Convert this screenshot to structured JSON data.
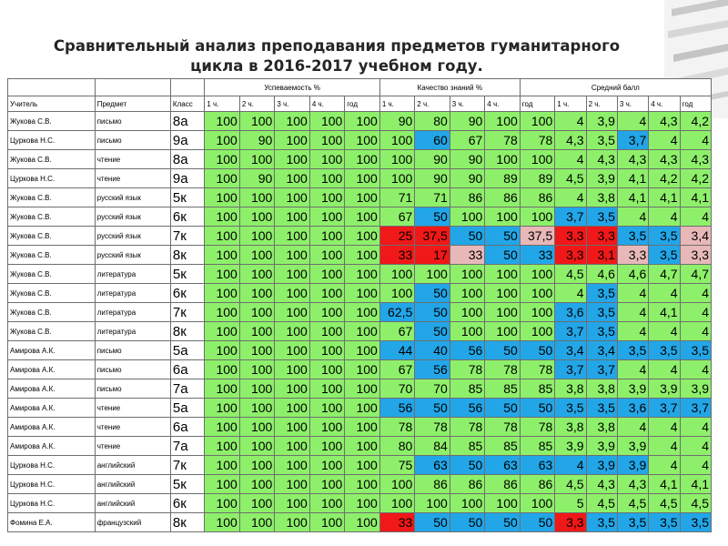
{
  "title_line1": "Сравнительный анализ преподавания предметов гуманитарного",
  "title_line2": "цикла в 2016-2017 учебном году.",
  "headers": {
    "uspevaemost": "Успеваемость %",
    "kachestvo": "Качество знаний %",
    "sredniy": "Средний балл",
    "teacher": "Учитель",
    "subject": "Предмет",
    "class": "Класс",
    "sub_us": [
      "1 ч.",
      "2 ч.",
      "3 ч.",
      "4 ч.",
      "год"
    ],
    "sub_k": [
      "1 ч.",
      "2 ч.",
      "3 ч.",
      "4 ч."
    ],
    "sub_s": [
      "год",
      "1 ч.",
      "2 ч.",
      "3 ч.",
      "4 ч.",
      "год"
    ]
  },
  "colors": {
    "green": "#8ef06a",
    "blue": "#22a6e8",
    "red": "#f01818",
    "pink": "#e8b8b8"
  },
  "rows": [
    {
      "t": "Жукова С.В.",
      "s": "письмо",
      "c": "8а",
      "v": [
        "100",
        "100",
        "100",
        "100",
        "100",
        "90",
        "80",
        "90",
        "100",
        "100",
        "4",
        "3,9",
        "4",
        "4,3",
        "4,2"
      ],
      "m": "ggggggggggggggg"
    },
    {
      "t": "Цуркова Н.С.",
      "s": "письмо",
      "c": "9а",
      "v": [
        "100",
        "90",
        "100",
        "100",
        "100",
        "100",
        "60",
        "67",
        "78",
        "78",
        "4,3",
        "3,5",
        "3,7",
        "4",
        "4"
      ],
      "m": "ggggggbgggggbgg"
    },
    {
      "t": "Жукова С.В.",
      "s": "чтение",
      "c": "8а",
      "v": [
        "100",
        "100",
        "100",
        "100",
        "100",
        "100",
        "90",
        "90",
        "100",
        "100",
        "4",
        "4,3",
        "4,3",
        "4,3",
        "4,3"
      ],
      "m": "ggggggggggggggg"
    },
    {
      "t": "Цуркова Н.С.",
      "s": "чтение",
      "c": "9а",
      "v": [
        "100",
        "90",
        "100",
        "100",
        "100",
        "100",
        "90",
        "90",
        "89",
        "89",
        "4,5",
        "3,9",
        "4,1",
        "4,2",
        "4,2"
      ],
      "m": "ggggggggggggggg"
    },
    {
      "t": "Жукова С.В.",
      "s": "русский язык",
      "c": "5к",
      "v": [
        "100",
        "100",
        "100",
        "100",
        "100",
        "71",
        "71",
        "86",
        "86",
        "86",
        "4",
        "3,8",
        "4,1",
        "4,1",
        "4,1"
      ],
      "m": "ggggggggggggggg"
    },
    {
      "t": "Жукова С.В.",
      "s": "русский язык",
      "c": "6к",
      "v": [
        "100",
        "100",
        "100",
        "100",
        "100",
        "67",
        "50",
        "100",
        "100",
        "100",
        "3,7",
        "3,5",
        "4",
        "4",
        "4"
      ],
      "m": "ggggggbgggbbggg"
    },
    {
      "t": "Жукова С.В.",
      "s": "русский язык",
      "c": "7к",
      "v": [
        "100",
        "100",
        "100",
        "100",
        "100",
        "25",
        "37,5",
        "50",
        "50",
        "37,5",
        "3,3",
        "3,3",
        "3,5",
        "3,5",
        "3,4"
      ],
      "m": "gggggrrbbprrbbp"
    },
    {
      "t": "Жукова С.В.",
      "s": "русский язык",
      "c": "8к",
      "v": [
        "100",
        "100",
        "100",
        "100",
        "100",
        "33",
        "17",
        "33",
        "50",
        "33",
        "3,3",
        "3,1",
        "3,3",
        "3,5",
        "3,3"
      ],
      "m": "gggggrrpbbrrpbp"
    },
    {
      "t": "Жукова С.В.",
      "s": "литература",
      "c": "5к",
      "v": [
        "100",
        "100",
        "100",
        "100",
        "100",
        "100",
        "100",
        "100",
        "100",
        "100",
        "4,5",
        "4,6",
        "4,6",
        "4,7",
        "4,7"
      ],
      "m": "ggggggggggggggg"
    },
    {
      "t": "Жукова С.В.",
      "s": "литература",
      "c": "6к",
      "v": [
        "100",
        "100",
        "100",
        "100",
        "100",
        "100",
        "50",
        "100",
        "100",
        "100",
        "4",
        "3,5",
        "4",
        "4",
        "4"
      ],
      "m": "ggggggbggggbggg"
    },
    {
      "t": "Жукова С.В.",
      "s": "литература",
      "c": "7к",
      "v": [
        "100",
        "100",
        "100",
        "100",
        "100",
        "62,5",
        "50",
        "100",
        "100",
        "100",
        "3,6",
        "3,5",
        "4",
        "4,1",
        "4"
      ],
      "m": "gggggbbgggbbggg"
    },
    {
      "t": "Жукова С.В.",
      "s": "литература",
      "c": "8к",
      "v": [
        "100",
        "100",
        "100",
        "100",
        "100",
        "67",
        "50",
        "100",
        "100",
        "100",
        "3,7",
        "3,5",
        "4",
        "4",
        "4"
      ],
      "m": "ggggggbgggbbggg"
    },
    {
      "t": "Амирова А.К.",
      "s": "письмо",
      "c": "5а",
      "v": [
        "100",
        "100",
        "100",
        "100",
        "100",
        "44",
        "40",
        "56",
        "50",
        "50",
        "3,4",
        "3,4",
        "3,5",
        "3,5",
        "3,5"
      ],
      "m": "gggggbbbbbbbbbb"
    },
    {
      "t": "Амирова А.К.",
      "s": "письмо",
      "c": "6а",
      "v": [
        "100",
        "100",
        "100",
        "100",
        "100",
        "67",
        "56",
        "78",
        "78",
        "78",
        "3,7",
        "3,7",
        "4",
        "4",
        "4"
      ],
      "m": "ggggggbgggbbggg"
    },
    {
      "t": "Амирова А.К.",
      "s": "письмо",
      "c": "7а",
      "v": [
        "100",
        "100",
        "100",
        "100",
        "100",
        "70",
        "70",
        "85",
        "85",
        "85",
        "3,8",
        "3,8",
        "3,9",
        "3,9",
        "3,9"
      ],
      "m": "ggggggggggggggg"
    },
    {
      "t": "Амирова А.К.",
      "s": "чтение",
      "c": "5а",
      "v": [
        "100",
        "100",
        "100",
        "100",
        "100",
        "56",
        "50",
        "56",
        "50",
        "50",
        "3,5",
        "3,5",
        "3,6",
        "3,7",
        "3,7"
      ],
      "m": "gggggbbbbbbbbbb"
    },
    {
      "t": "Амирова А.К.",
      "s": "чтение",
      "c": "6а",
      "v": [
        "100",
        "100",
        "100",
        "100",
        "100",
        "78",
        "78",
        "78",
        "78",
        "78",
        "3,8",
        "3,8",
        "4",
        "4",
        "4"
      ],
      "m": "ggggggggggggggg"
    },
    {
      "t": "Амирова А.К.",
      "s": "чтение",
      "c": "7а",
      "v": [
        "100",
        "100",
        "100",
        "100",
        "100",
        "80",
        "84",
        "85",
        "85",
        "85",
        "3,9",
        "3,9",
        "3,9",
        "4",
        "4"
      ],
      "m": "ggggggggggggggg"
    },
    {
      "t": "Цуркова Н.С.",
      "s": "английский",
      "c": "7к",
      "v": [
        "100",
        "100",
        "100",
        "100",
        "100",
        "75",
        "63",
        "50",
        "63",
        "63",
        "4",
        "3,9",
        "3,9",
        "4",
        "4"
      ],
      "m": "ggggggbbbbbbbgg"
    },
    {
      "t": "Цуркова Н.С.",
      "s": "английский",
      "c": "5к",
      "v": [
        "100",
        "100",
        "100",
        "100",
        "100",
        "100",
        "86",
        "86",
        "86",
        "86",
        "4,5",
        "4,3",
        "4,3",
        "4,1",
        "4,1"
      ],
      "m": "ggggggggggggggg"
    },
    {
      "t": "Цуркова Н.С.",
      "s": "английский",
      "c": "6к",
      "v": [
        "100",
        "100",
        "100",
        "100",
        "100",
        "100",
        "100",
        "100",
        "100",
        "100",
        "5",
        "4,5",
        "4,5",
        "4,5",
        "4,5"
      ],
      "m": "ggggggggggggggg"
    },
    {
      "t": "Фомина Е.А.",
      "s": "французский",
      "c": "8к",
      "v": [
        "100",
        "100",
        "100",
        "100",
        "100",
        "33",
        "50",
        "50",
        "50",
        "50",
        "3,3",
        "3,5",
        "3,5",
        "3,5",
        "3,5"
      ],
      "m": "gggggrbbbbrbbbb"
    }
  ]
}
